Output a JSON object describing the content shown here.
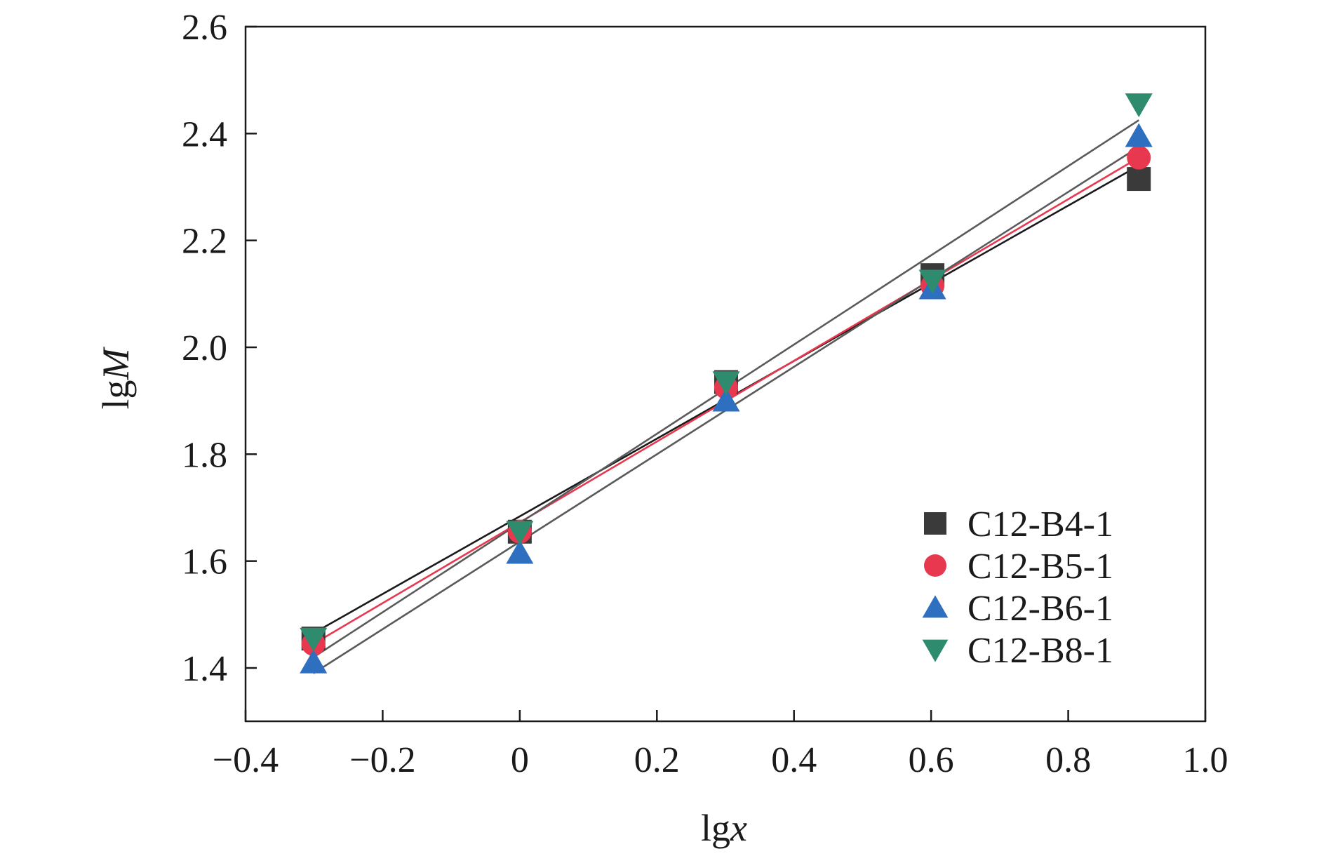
{
  "chart_data": {
    "type": "scatter",
    "xlabel": {
      "prefix": "lg",
      "italic": "x"
    },
    "ylabel": {
      "prefix": "lg",
      "italic": "M"
    },
    "xlim": [
      -0.4,
      1.0
    ],
    "ylim": [
      1.3,
      2.6
    ],
    "x_ticks": [
      -0.4,
      -0.2,
      0,
      0.2,
      0.4,
      0.6,
      0.8,
      1.0
    ],
    "x_tick_labels": [
      "−0.4",
      "−0.2",
      "0",
      "0.2",
      "0.4",
      "0.6",
      "0.8",
      "1.0"
    ],
    "y_ticks": [
      1.4,
      1.6,
      1.8,
      2.0,
      2.2,
      2.4,
      2.6
    ],
    "y_tick_labels": [
      "1.4",
      "1.6",
      "1.8",
      "2.0",
      "2.2",
      "2.4",
      "2.6"
    ],
    "grid": false,
    "legend_position": "bottom-right",
    "x": [
      -0.301,
      0,
      0.301,
      0.602,
      0.903
    ],
    "series": [
      {
        "name": "C12-B4-1",
        "marker": "square",
        "color": "#3a3a3a",
        "line_color": "#1a1a1a",
        "values": [
          1.455,
          1.655,
          1.935,
          2.135,
          2.315
        ],
        "fit": {
          "y_at_x0": 1.465,
          "y_at_x1": 2.34
        }
      },
      {
        "name": "C12-B5-1",
        "marker": "circle",
        "color": "#e8384f",
        "line_color": "#e8384f",
        "values": [
          1.445,
          1.655,
          1.925,
          2.115,
          2.355
        ],
        "fit": {
          "y_at_x0": 1.445,
          "y_at_x1": 2.355
        }
      },
      {
        "name": "C12-B6-1",
        "marker": "triangle-up",
        "color": "#2f6fbf",
        "line_color": "#5a5a5a",
        "values": [
          1.41,
          1.615,
          1.9,
          2.11,
          2.395
        ],
        "fit": {
          "y_at_x0": 1.39,
          "y_at_x1": 2.375
        }
      },
      {
        "name": "C12-B8-1",
        "marker": "triangle-down",
        "color": "#2e8b6e",
        "line_color": "#5a5a5a",
        "values": [
          1.455,
          1.655,
          1.935,
          2.125,
          2.455
        ],
        "fit": {
          "y_at_x0": 1.42,
          "y_at_x1": 2.425
        }
      }
    ]
  }
}
